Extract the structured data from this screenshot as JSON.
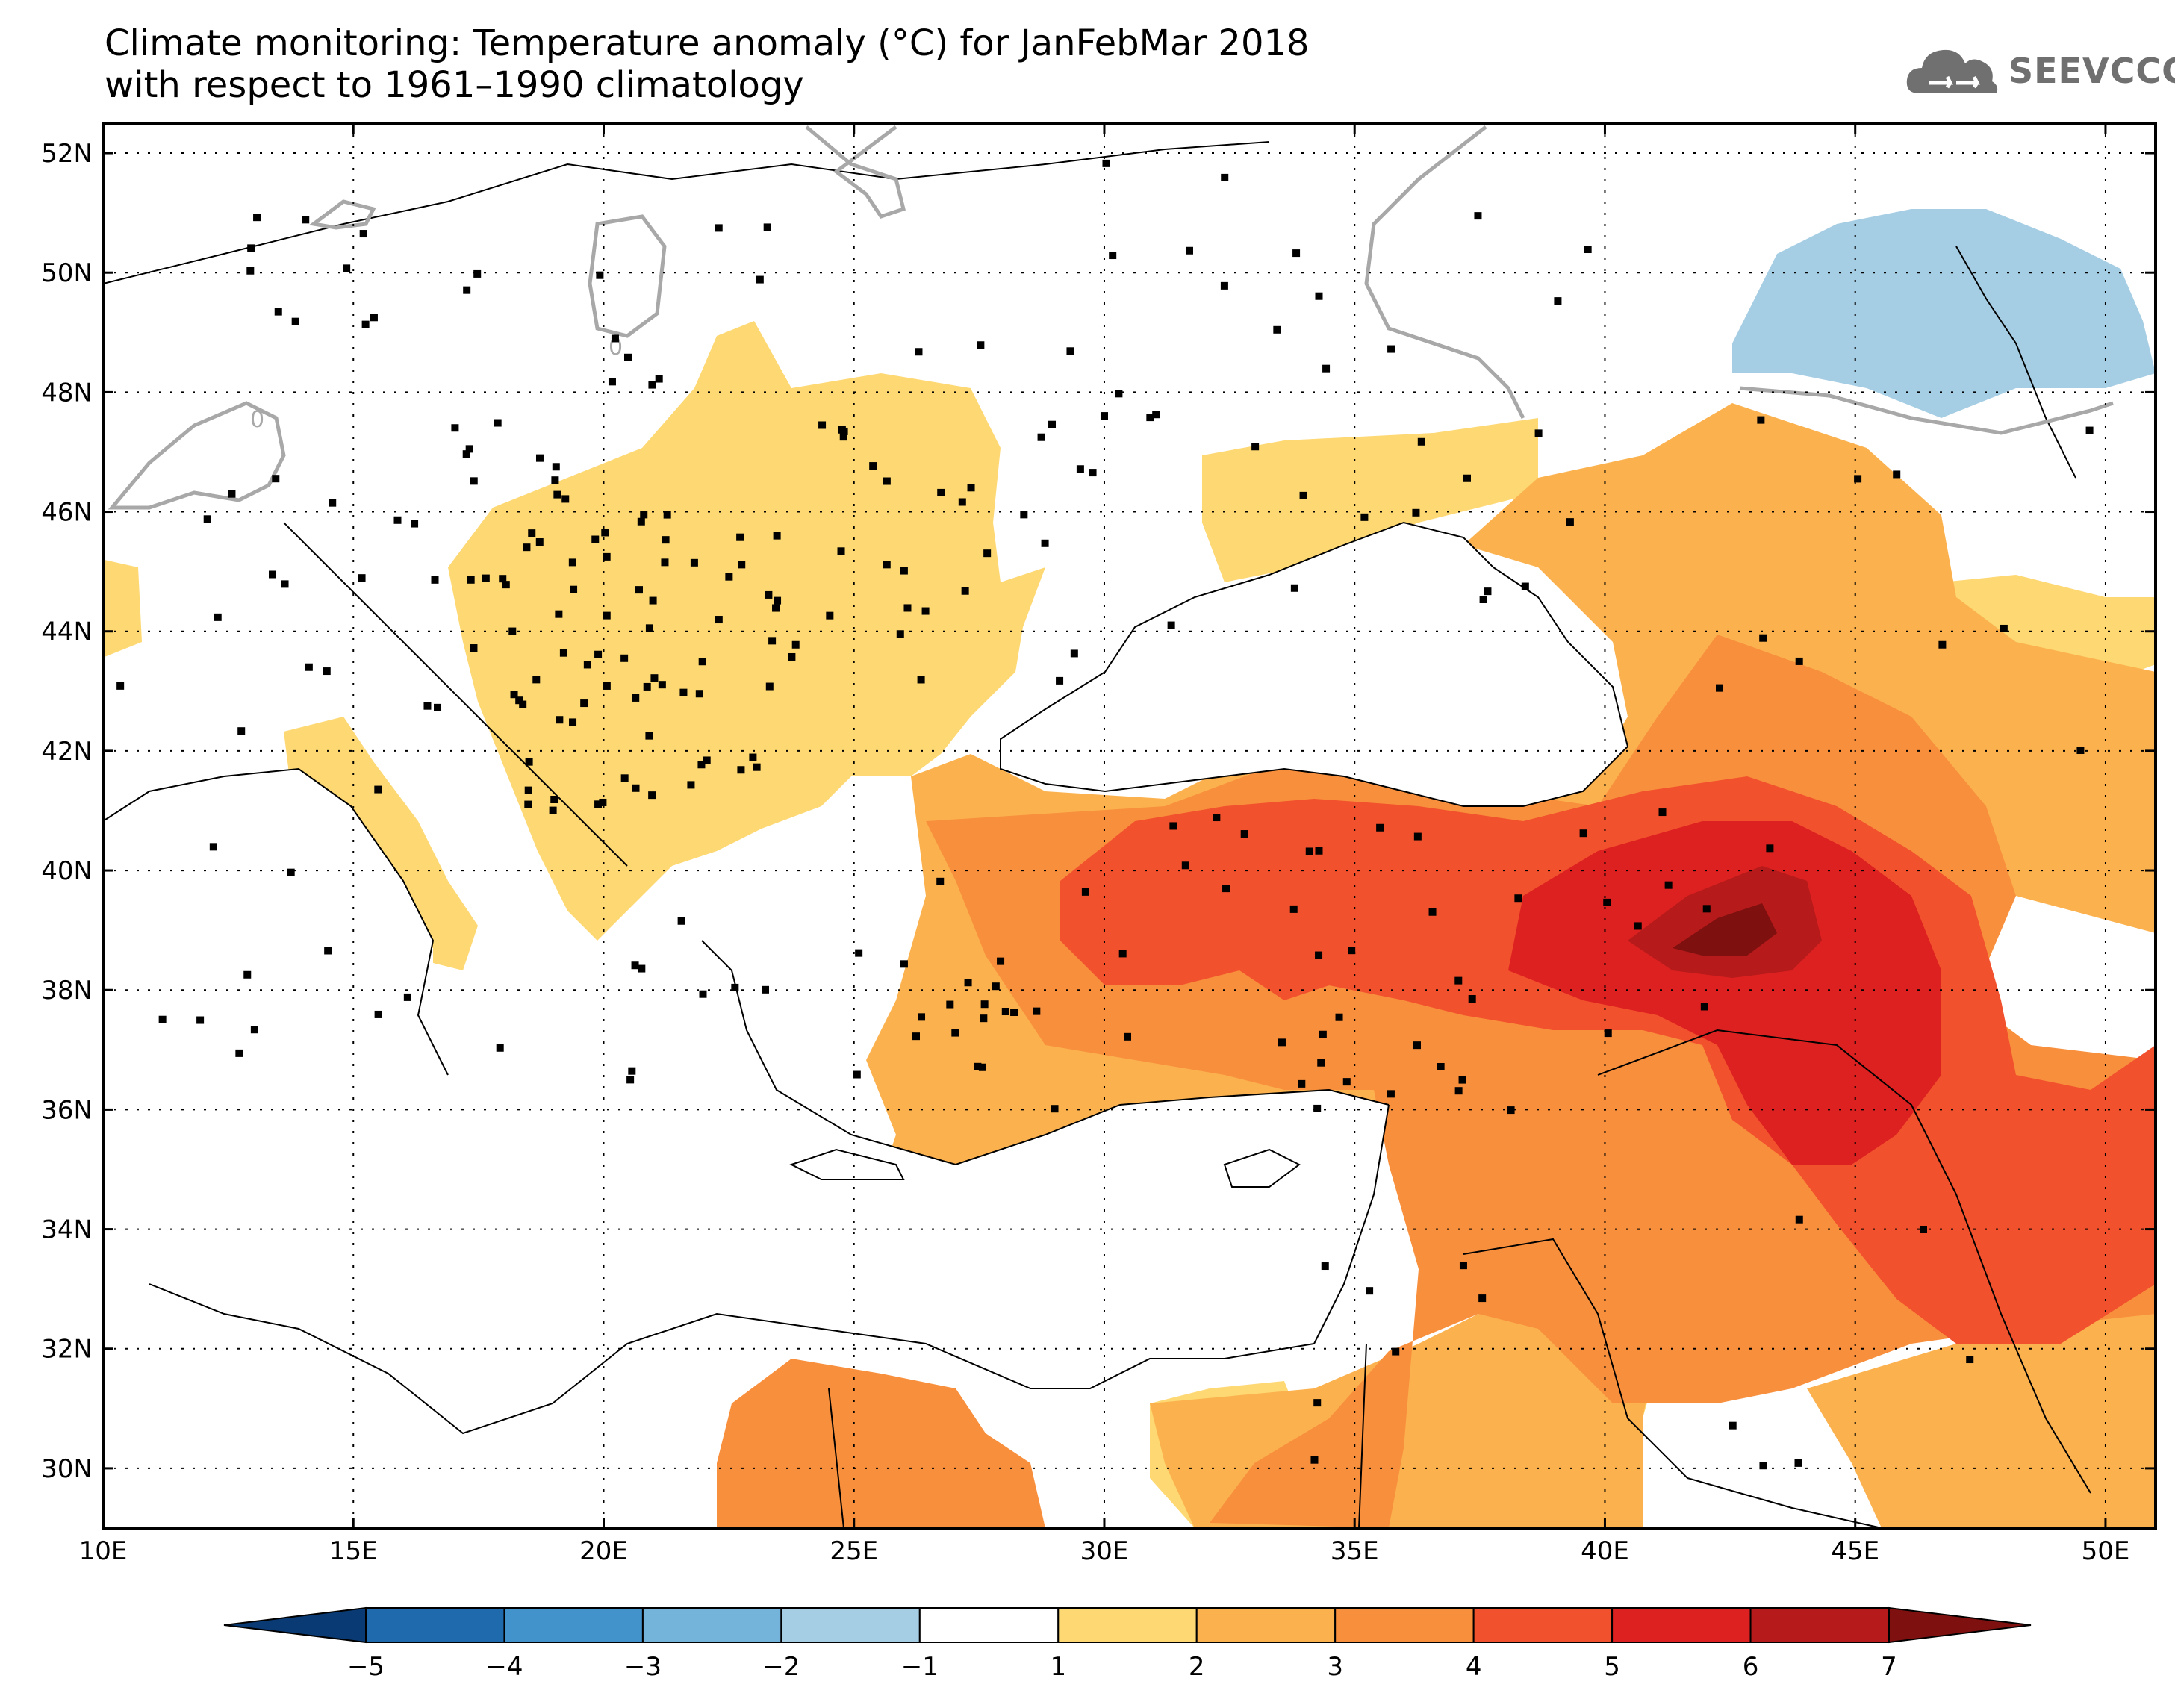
{
  "title": {
    "line1": "Climate monitoring: Temperature anomaly (°C) for JanFebMar 2018",
    "line2": "with respect to 1961–1990 climatology"
  },
  "logo": {
    "text": "SEEVCCC",
    "icon": "cloud-icon",
    "color": "#707070"
  },
  "map": {
    "lon_range": [
      10,
      51
    ],
    "lat_range": [
      29,
      52.5
    ],
    "lon_ticks": [
      {
        "value": 10,
        "label": "10E"
      },
      {
        "value": 15,
        "label": "15E"
      },
      {
        "value": 20,
        "label": "20E"
      },
      {
        "value": 25,
        "label": "25E"
      },
      {
        "value": 30,
        "label": "30E"
      },
      {
        "value": 35,
        "label": "35E"
      },
      {
        "value": 40,
        "label": "40E"
      },
      {
        "value": 45,
        "label": "45E"
      },
      {
        "value": 50,
        "label": "50E"
      }
    ],
    "lat_ticks": [
      {
        "value": 30,
        "label": "30N"
      },
      {
        "value": 32,
        "label": "32N"
      },
      {
        "value": 34,
        "label": "34N"
      },
      {
        "value": 36,
        "label": "36N"
      },
      {
        "value": 38,
        "label": "38N"
      },
      {
        "value": 40,
        "label": "40N"
      },
      {
        "value": 42,
        "label": "42N"
      },
      {
        "value": 44,
        "label": "44N"
      },
      {
        "value": 46,
        "label": "46N"
      },
      {
        "value": 48,
        "label": "48N"
      },
      {
        "value": 50,
        "label": "50N"
      },
      {
        "value": 52,
        "label": "52N"
      }
    ],
    "contour_label": "0",
    "zero_contour_color": "#a8a8a8"
  },
  "colorbar": {
    "colors": [
      "#0a3a73",
      "#1f6aad",
      "#4292cc",
      "#74b3da",
      "#a5cde3",
      "#ffffff",
      "#fdd873",
      "#fbb24e",
      "#f88f3c",
      "#f2512d",
      "#dd2020",
      "#b61a1a",
      "#7f1010"
    ],
    "labels": [
      "−5",
      "−4",
      "−3",
      "−2",
      "−1",
      "1",
      "2",
      "3",
      "4",
      "5",
      "6",
      "7"
    ]
  }
}
